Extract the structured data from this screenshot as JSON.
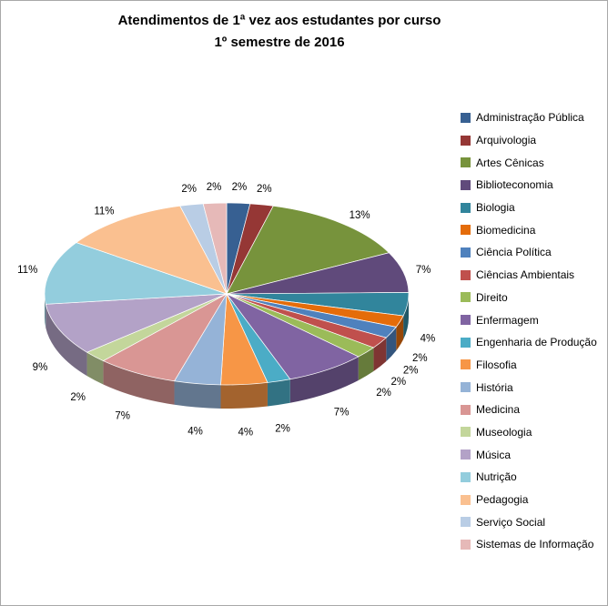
{
  "chart_data": {
    "type": "pie",
    "effect": "3d",
    "title": "Atendimentos de 1ª vez aos estudantes por curso",
    "subtitle": "1º semestre de 2016",
    "legend_position": "right",
    "label_format": "percent",
    "values_unit": "%",
    "slices": [
      {
        "label": "Administração Pública",
        "value": 2,
        "color": "#376092"
      },
      {
        "label": "Arquivologia",
        "value": 2,
        "color": "#953735"
      },
      {
        "label": "Artes Cênicas",
        "value": 13,
        "color": "#77933C"
      },
      {
        "label": "Biblioteconomia",
        "value": 7,
        "color": "#604A7B"
      },
      {
        "label": "Biologia",
        "value": 4,
        "color": "#31859C"
      },
      {
        "label": "Biomedicina",
        "value": 2,
        "color": "#E46C0A"
      },
      {
        "label": "Ciência Política",
        "value": 2,
        "color": "#4F81BD"
      },
      {
        "label": "Ciências Ambientais",
        "value": 2,
        "color": "#C0504D"
      },
      {
        "label": "Direito",
        "value": 2,
        "color": "#9BBB59"
      },
      {
        "label": "Enfermagem",
        "value": 7,
        "color": "#8064A2"
      },
      {
        "label": "Engenharia de Produção",
        "value": 2,
        "color": "#4BACC6"
      },
      {
        "label": "Filosofia",
        "value": 4,
        "color": "#F79646"
      },
      {
        "label": "História",
        "value": 4,
        "color": "#95B3D7"
      },
      {
        "label": "Medicina",
        "value": 7,
        "color": "#D99694"
      },
      {
        "label": "Museologia",
        "value": 2,
        "color": "#C3D69B"
      },
      {
        "label": "Música",
        "value": 9,
        "color": "#B3A2C7"
      },
      {
        "label": "Nutrição",
        "value": 11,
        "color": "#93CDDD"
      },
      {
        "label": "Pedagogia",
        "value": 11,
        "color": "#FAC090"
      },
      {
        "label": "Serviço Social",
        "value": 2,
        "color": "#B9CDE5"
      },
      {
        "label": "Sistemas de Informação",
        "value": 2,
        "color": "#E6B9B8"
      }
    ]
  }
}
